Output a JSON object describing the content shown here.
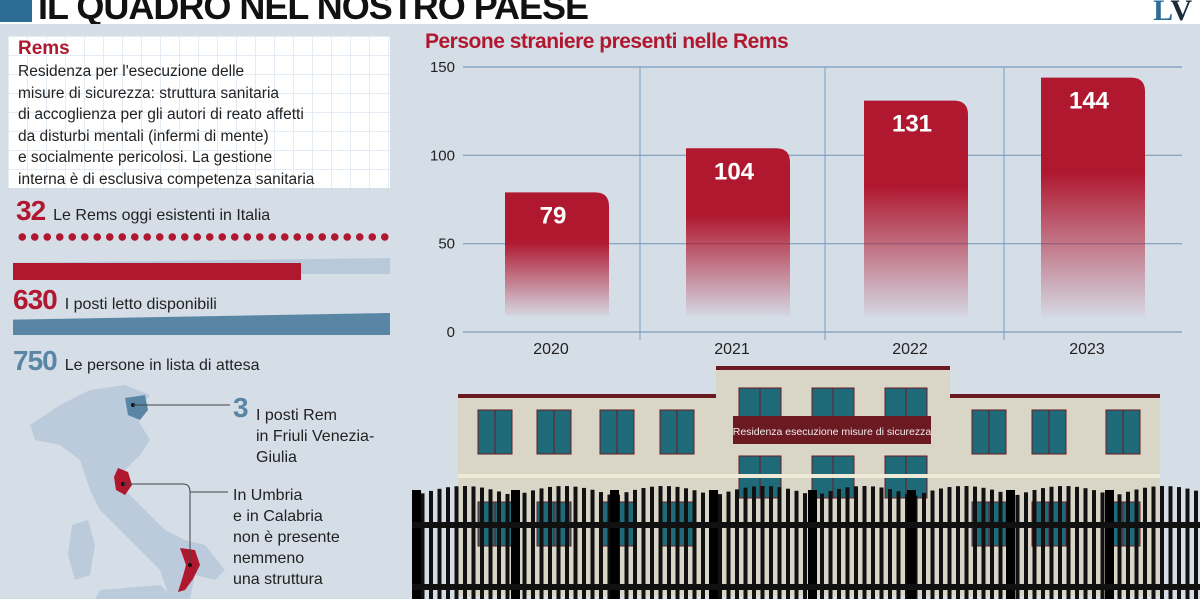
{
  "header": {
    "title": "IL QUADRO NEL NOSTRO PAESE",
    "logo": "LV"
  },
  "definition": {
    "heading": "Rems",
    "text": "Residenza per l'esecuzione delle\nmisure di sicurezza: struttura sanitaria\ndi accoglienza per gli autori di reato affetti\nda disturbi mentali (infermi di mente)\ne socialmente pericolosi. La gestione\ninterna è di esclusiva competenza sanitaria"
  },
  "stats": [
    {
      "value": "32",
      "label": "Le Rems oggi esistenti in Italia"
    },
    {
      "value": "630",
      "label": "I posti letto disponibili"
    },
    {
      "value": "750",
      "label": "Le persone in lista di attesa"
    }
  ],
  "map_notes": {
    "friuli": {
      "value": "3",
      "text": "I posti Rem\nin Friuli Venezia-\nGiulia"
    },
    "umbria_calabria": "In Umbria\ne in Calabria\nnon è presente\nnemmeno\nuna struttura"
  },
  "building_sign": "Residenza esecuzione misure di sicurezza",
  "colors": {
    "accent_red": "#b01830",
    "accent_blue": "#5a86a6",
    "background": "#d5dde7"
  },
  "chart_data": {
    "type": "bar",
    "title": "Persone straniere presenti nelle Rems",
    "categories": [
      "2020",
      "2021",
      "2022",
      "2023"
    ],
    "values": [
      79,
      104,
      131,
      144
    ],
    "yticks": [
      0,
      50,
      100,
      150
    ],
    "ylim": [
      0,
      150
    ],
    "grid": true,
    "xlabel": "",
    "ylabel": ""
  }
}
